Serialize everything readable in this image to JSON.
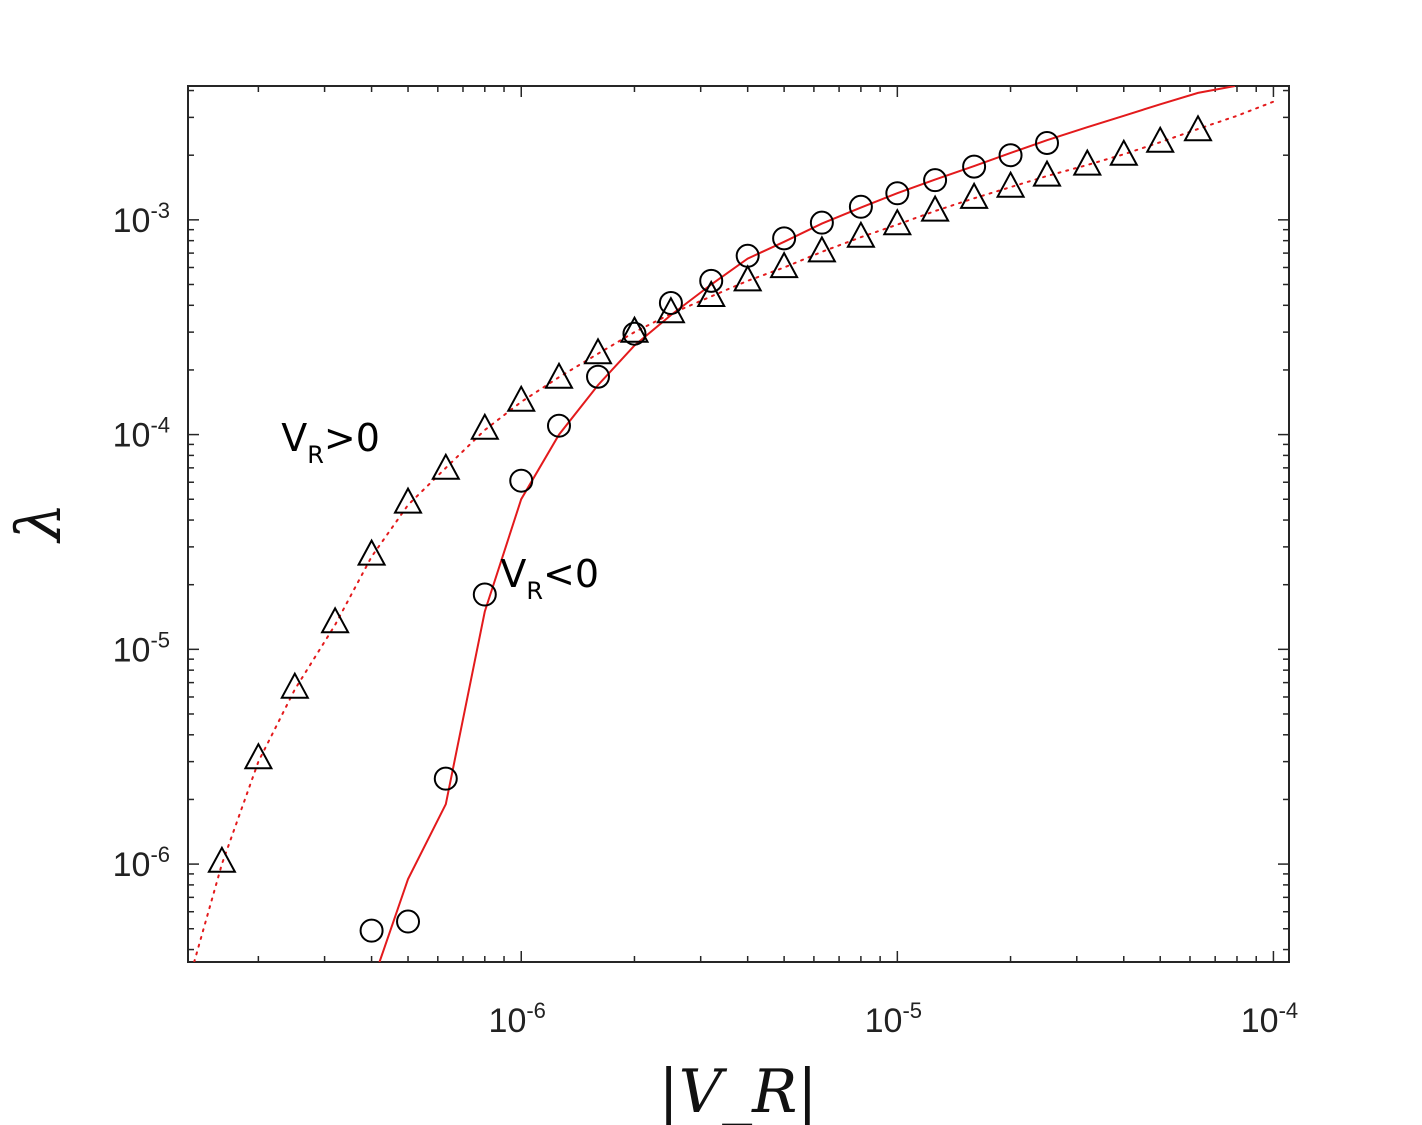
{
  "chart_data": {
    "type": "scatter",
    "title": "",
    "xlabel": "|V_R|",
    "ylabel": "λ",
    "xscale": "log",
    "yscale": "log",
    "xlim": [
      1.3e-07,
      0.00011
    ],
    "ylim": [
      3.5e-07,
      0.0042
    ],
    "x_ticks": [
      {
        "value": 1e-06,
        "base": "10",
        "exp": "-6"
      },
      {
        "value": 1e-05,
        "base": "10",
        "exp": "-5"
      },
      {
        "value": 0.0001,
        "base": "10",
        "exp": "-4"
      }
    ],
    "y_ticks": [
      {
        "value": 1e-06,
        "base": "10",
        "exp": "-6"
      },
      {
        "value": 1e-05,
        "base": "10",
        "exp": "-5"
      },
      {
        "value": 0.0001,
        "base": "10",
        "exp": "-4"
      },
      {
        "value": 0.001,
        "base": "10",
        "exp": "-3"
      }
    ],
    "series": [
      {
        "name": "V_R>0",
        "marker": "triangle",
        "x": [
          1.6e-07,
          2e-07,
          2.5e-07,
          3.2e-07,
          4e-07,
          5e-07,
          6.3e-07,
          8e-07,
          1e-06,
          1.26e-06,
          1.6e-06,
          2e-06,
          2.5e-06,
          3.2e-06,
          4e-06,
          5e-06,
          6.3e-06,
          8e-06,
          1e-05,
          1.26e-05,
          1.6e-05,
          2e-05,
          2.5e-05,
          3.2e-05,
          4e-05,
          5e-05,
          6.3e-05
        ],
        "values": [
          1.02e-06,
          3.1e-06,
          6.6e-06,
          1.33e-05,
          2.75e-05,
          4.8e-05,
          6.9e-05,
          0.000106,
          0.000143,
          0.000183,
          0.000238,
          0.0003,
          0.00037,
          0.00044,
          0.00052,
          0.0006,
          0.00071,
          0.00083,
          0.00095,
          0.0011,
          0.00126,
          0.00142,
          0.0016,
          0.0018,
          0.002,
          0.0023,
          0.0026
        ]
      },
      {
        "name": "V_R<0",
        "marker": "circle",
        "x": [
          4e-07,
          5e-07,
          6.3e-07,
          8e-07,
          1e-06,
          1.26e-06,
          1.6e-06,
          2e-06,
          2.5e-06,
          3.2e-06,
          4e-06,
          5e-06,
          6.3e-06,
          8e-06,
          1e-05,
          1.26e-05,
          1.6e-05,
          2e-05,
          2.5e-05
        ],
        "values": [
          4.9e-07,
          5.4e-07,
          2.5e-06,
          1.8e-05,
          6.1e-05,
          0.00011,
          0.000186,
          0.000295,
          0.00041,
          0.00052,
          0.00068,
          0.00082,
          0.00097,
          0.00115,
          0.00133,
          0.00153,
          0.00177,
          0.002,
          0.00228
        ]
      },
      {
        "name": "V_R>0 fit",
        "line": "dotted",
        "color": "#e31a1c",
        "x": [
          1.35e-07,
          1.6e-07,
          2e-07,
          2.5e-07,
          3.2e-07,
          4e-07,
          5e-07,
          6.3e-07,
          8e-07,
          1e-06,
          1.26e-06,
          1.6e-06,
          2e-06,
          2.5e-06,
          3.2e-06,
          4e-06,
          5e-06,
          6.3e-06,
          8e-06,
          1e-05,
          1.26e-05,
          1.6e-05,
          2e-05,
          2.5e-05,
          3.2e-05,
          4e-05,
          5e-05,
          6.3e-05,
          8e-05,
          0.0001
        ],
        "values": [
          3.5e-07,
          1e-06,
          3e-06,
          6.5e-06,
          1.3e-05,
          2.7e-05,
          4.7e-05,
          7e-05,
          0.000105,
          0.000142,
          0.000185,
          0.000238,
          0.0003,
          0.000365,
          0.00044,
          0.00052,
          0.0006,
          0.00071,
          0.00083,
          0.00095,
          0.0011,
          0.00126,
          0.00142,
          0.0016,
          0.0018,
          0.00202,
          0.0023,
          0.00265,
          0.00305,
          0.00355
        ]
      },
      {
        "name": "V_R<0 fit",
        "line": "solid",
        "color": "#e31a1c",
        "x": [
          4.2e-07,
          5e-07,
          6.3e-07,
          8e-07,
          1e-06,
          1.26e-06,
          1.6e-06,
          2e-06,
          2.5e-06,
          3.2e-06,
          4e-06,
          5e-06,
          6.3e-06,
          8e-06,
          1e-05,
          1.26e-05,
          1.6e-05,
          2e-05,
          2.5e-05,
          3.2e-05,
          4e-05,
          5e-05,
          6.3e-05,
          7.9e-05
        ],
        "values": [
          3.5e-07,
          8.5e-07,
          1.9e-06,
          1.5e-05,
          5e-05,
          0.0001,
          0.00017,
          0.00026,
          0.00036,
          0.0005,
          0.00066,
          0.00079,
          0.00096,
          0.00114,
          0.00133,
          0.00154,
          0.00178,
          0.00205,
          0.00235,
          0.0027,
          0.00305,
          0.00345,
          0.0039,
          0.0042
        ]
      }
    ],
    "annotations": [
      {
        "text": "V",
        "sub": "R",
        "rest": ">0",
        "x": 2.3e-07,
        "y": 8.4e-05
      },
      {
        "text": "V",
        "sub": "R",
        "rest": "<0",
        "x": 8.8e-07,
        "y": 1.95e-05
      }
    ]
  }
}
